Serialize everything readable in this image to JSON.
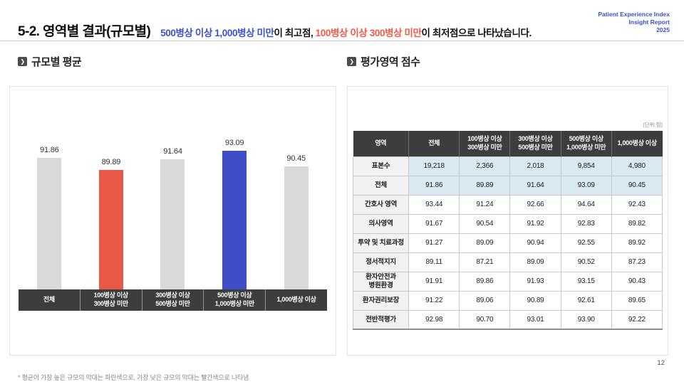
{
  "page": {
    "title": "5-2. 영역별 결과(규모별)",
    "subtitle": {
      "highlight_blue": "500병상 이상 1,000병상 미만",
      "mid": "이 최고점, ",
      "highlight_red": "100병상 이상 300병상 미만",
      "tail": "이 최저점으로 나타났습니다."
    },
    "brand": {
      "line1": "Patient Experience Index",
      "line2": "Insight Report",
      "line3": "2025"
    },
    "footnote": "* 평균이 가장 높은 규모의 막대는 파란색으로, 가장 낮은 규모의 막대는 빨간색으로 나타냄",
    "page_number": "12"
  },
  "sections": {
    "chart_title": "규모별 평균",
    "table_title": "평가영역 점수",
    "unit_note": "(단위:점)"
  },
  "chart_data": {
    "type": "bar",
    "title": "규모별 평균",
    "categories": [
      "전체",
      "100병상 이상\n300병상 미만",
      "300병상 이상\n500병상 미만",
      "500병상 이상\n1,000병상 미만",
      "1,000병상 이상"
    ],
    "values": [
      91.86,
      89.89,
      91.64,
      93.09,
      90.45
    ],
    "bar_colors": [
      "#d9d9d9",
      "#ea5847",
      "#d9d9d9",
      "#3d4ec6",
      "#d9d9d9"
    ],
    "baseline": 70,
    "ylim": [
      70,
      95
    ],
    "grid": false,
    "data_labels": true,
    "legend": "none",
    "note": "highest size group bar in blue, lowest in red"
  },
  "table": {
    "columns": [
      "영역",
      "전체",
      "100병상 이상\n300병상 미만",
      "300병상 이상\n500병상 미만",
      "500병상 이상\n1,000병상 미만",
      "1,000병상 이상"
    ],
    "rows": [
      {
        "label": "표본수",
        "values": [
          "19,218",
          "2,366",
          "2,018",
          "9,854",
          "4,980"
        ],
        "highlight": true
      },
      {
        "label": "전체",
        "values": [
          "91.86",
          "89.89",
          "91.64",
          "93.09",
          "90.45"
        ],
        "highlight": true
      },
      {
        "label": "간호사 영역",
        "values": [
          "93.44",
          "91.24",
          "92.66",
          "94.64",
          "92.43"
        ],
        "highlight": false
      },
      {
        "label": "의사영역",
        "values": [
          "91.67",
          "90.54",
          "91.92",
          "92.83",
          "89.82"
        ],
        "highlight": false
      },
      {
        "label": "투약 및 치료과정",
        "values": [
          "91.27",
          "89.09",
          "90.94",
          "92.55",
          "89.92"
        ],
        "highlight": false
      },
      {
        "label": "정서적지지",
        "values": [
          "89.11",
          "87.21",
          "89.09",
          "90.52",
          "87.23"
        ],
        "highlight": false
      },
      {
        "label": "환자안전과\n병원환경",
        "values": [
          "91.91",
          "89.86",
          "91.93",
          "93.15",
          "90.43"
        ],
        "highlight": false
      },
      {
        "label": "환자권리보장",
        "values": [
          "91.22",
          "89.06",
          "90.89",
          "92.61",
          "89.65"
        ],
        "highlight": false
      },
      {
        "label": "전반적평가",
        "values": [
          "92.98",
          "90.70",
          "93.01",
          "93.90",
          "92.22"
        ],
        "highlight": false
      }
    ]
  },
  "colors": {
    "accent_blue": "#3d4ec6",
    "accent_red": "#ea5847",
    "text_blue": "#3c50d2",
    "text_red": "#f25a49",
    "bar_gray": "#d9d9d9",
    "header_bg": "#3d3d3d",
    "highlight_cell": "#d9ebf1",
    "label_cell": "#f2f2f2"
  }
}
